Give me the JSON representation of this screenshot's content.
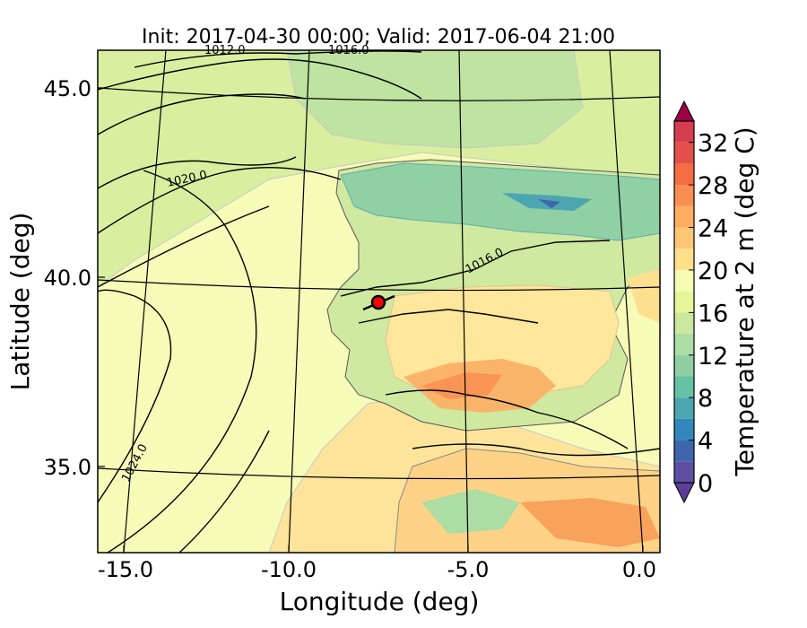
{
  "title": "Init: 2017-04-30 00:00; Valid: 2017-06-04 21:00",
  "x_axis": {
    "label": "Longitude (deg)",
    "ticks": [
      "-15.0",
      "-10.0",
      "-5.0",
      "0.0"
    ]
  },
  "y_axis": {
    "label": "Latitude (deg)",
    "ticks": [
      "45.0",
      "40.0",
      "35.0"
    ]
  },
  "colorbar": {
    "label": "Temperature at 2 m (deg C)",
    "ticks": [
      "0",
      "4",
      "8",
      "12",
      "16",
      "20",
      "24",
      "28",
      "32"
    ],
    "levels": [
      0,
      2,
      4,
      6,
      8,
      10,
      12,
      14,
      16,
      18,
      20,
      22,
      24,
      26,
      28,
      30,
      32,
      34
    ],
    "colors": [
      "#5e4fa2",
      "#3f66ad",
      "#3288bd",
      "#4ca5b1",
      "#66c2a5",
      "#8ed0a4",
      "#abdda4",
      "#cbe89e",
      "#e6f598",
      "#f5fbb2",
      "#fee08b",
      "#fdc675",
      "#fdae61",
      "#f98e52",
      "#f46d43",
      "#e3504b",
      "#d53e4f",
      "#b51f4a"
    ],
    "under_color": "#5e3c99",
    "over_color": "#9e0142"
  },
  "isobar_labels": [
    "1012.0",
    "1016.0",
    "1020.0",
    "1016.0",
    "1024.0"
  ],
  "marker": {
    "color": "#ff0000",
    "edge": "#000000"
  }
}
